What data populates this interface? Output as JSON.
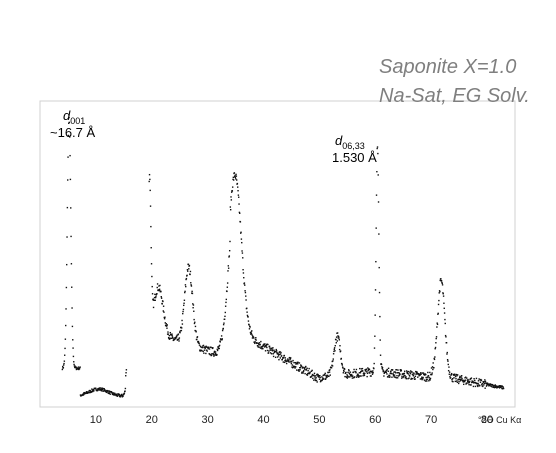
{
  "chart_data": {
    "type": "scatter",
    "notes": [
      "Saponite X=1.0",
      "Na-Sat, EG Solv."
    ],
    "xlabel": "°2Θ Cu Kα",
    "xticks": [
      10,
      20,
      30,
      40,
      50,
      60,
      70,
      80
    ],
    "xlim": [
      0,
      85
    ],
    "ylim": [
      0,
      1
    ],
    "annotations": [
      {
        "sym": "d",
        "sub": "001",
        "value": "~16.7 Å",
        "x": 5.2
      },
      {
        "sym": "d",
        "sub": "06,33",
        "value": "1.530 Å",
        "x": 60.4
      }
    ],
    "gap": [
      15.5,
      19.5
    ],
    "peaks": [
      {
        "x": 5.2,
        "h": 0.84,
        "w": 0.45
      },
      {
        "x": 16.0,
        "h": 0.1,
        "w": 0.6
      },
      {
        "x": 19.6,
        "h": 0.5,
        "w": 0.35
      },
      {
        "x": 21.2,
        "h": 0.16,
        "w": 1.2
      },
      {
        "x": 26.6,
        "h": 0.26,
        "w": 1.0
      },
      {
        "x": 34.9,
        "h": 0.52,
        "w": 1.6
      },
      {
        "x": 53.2,
        "h": 0.13,
        "w": 0.8
      },
      {
        "x": 60.4,
        "h": 0.76,
        "w": 0.35
      },
      {
        "x": 71.8,
        "h": 0.32,
        "w": 0.9
      }
    ],
    "series": [
      {
        "values": []
      }
    ]
  }
}
